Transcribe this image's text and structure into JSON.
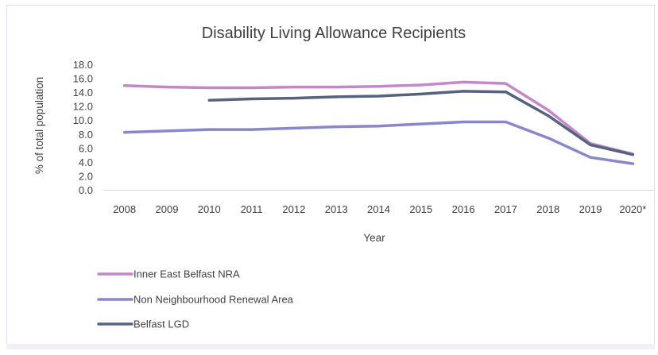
{
  "chart_data": {
    "type": "line",
    "title": "Disability Living Allowance Recipients",
    "xlabel": "Year",
    "ylabel": "% of total population",
    "categories": [
      "2008",
      "2009",
      "2010",
      "2011",
      "2012",
      "2013",
      "2014",
      "2015",
      "2016",
      "2017",
      "2018",
      "2019",
      "2020*"
    ],
    "ylim": [
      0,
      18
    ],
    "yticks": [
      "0.0",
      "2.0",
      "4.0",
      "6.0",
      "8.0",
      "10.0",
      "12.0",
      "14.0",
      "16.0",
      "18.0"
    ],
    "grid": false,
    "legend_position": "bottom-left",
    "series": [
      {
        "name": "Inner East Belfast NRA",
        "color": "#c587c8",
        "values": [
          15.0,
          14.8,
          14.7,
          14.7,
          14.8,
          14.8,
          14.9,
          15.1,
          15.5,
          15.3,
          11.5,
          6.7,
          5.2
        ]
      },
      {
        "name": "Non Neighbourhood Renewal Area",
        "color": "#8a86cc",
        "values": [
          8.3,
          8.5,
          8.7,
          8.7,
          8.9,
          9.1,
          9.2,
          9.5,
          9.8,
          9.8,
          7.5,
          4.7,
          3.8
        ]
      },
      {
        "name": "Belfast LGD",
        "color": "#55637f",
        "values": [
          null,
          null,
          12.9,
          13.1,
          13.2,
          13.4,
          13.5,
          13.8,
          14.2,
          14.1,
          10.7,
          6.5,
          5.1
        ]
      }
    ]
  }
}
